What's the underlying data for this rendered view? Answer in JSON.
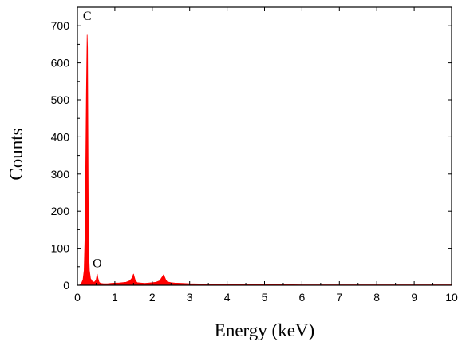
{
  "chart_data": {
    "type": "area",
    "xlabel": "Energy (keV)",
    "ylabel": "Counts",
    "xlim": [
      0,
      10
    ],
    "ylim": [
      0,
      750
    ],
    "x_ticks": [
      0,
      1,
      2,
      3,
      4,
      5,
      6,
      7,
      8,
      9,
      10
    ],
    "y_ticks": [
      0,
      100,
      200,
      300,
      400,
      500,
      600,
      700
    ],
    "grid": false,
    "color": "#ff0000",
    "annotations": [
      {
        "text": "C",
        "x": 0.26,
        "y": 715
      },
      {
        "text": "O",
        "x": 0.53,
        "y": 48
      }
    ],
    "series": [
      {
        "x": [
          0.0,
          0.05,
          0.1,
          0.15,
          0.18,
          0.2,
          0.22,
          0.24,
          0.25,
          0.26,
          0.27,
          0.28,
          0.29,
          0.3,
          0.32,
          0.35,
          0.4,
          0.45,
          0.5,
          0.52,
          0.53,
          0.55,
          0.58,
          0.62,
          0.7,
          0.8,
          0.9,
          1.0,
          1.1,
          1.2,
          1.3,
          1.4,
          1.45,
          1.48,
          1.5,
          1.52,
          1.55,
          1.6,
          1.7,
          1.8,
          1.9,
          2.0,
          2.1,
          2.2,
          2.25,
          2.28,
          2.3,
          2.33,
          2.36,
          2.4,
          2.5,
          2.6,
          2.8,
          3.0,
          3.5,
          4.0,
          4.5,
          5.0,
          6.0,
          7.0,
          8.0,
          9.0,
          10.0
        ],
        "values": [
          0,
          0,
          3,
          15,
          40,
          120,
          300,
          520,
          600,
          675,
          640,
          430,
          220,
          90,
          40,
          18,
          10,
          8,
          14,
          25,
          30,
          18,
          8,
          5,
          4,
          4,
          5,
          6,
          6,
          7,
          8,
          12,
          18,
          25,
          30,
          22,
          12,
          7,
          6,
          5,
          6,
          7,
          8,
          12,
          20,
          24,
          28,
          22,
          15,
          9,
          7,
          6,
          5,
          4,
          3,
          3,
          2,
          2,
          1,
          1,
          1,
          1,
          1
        ]
      }
    ]
  }
}
